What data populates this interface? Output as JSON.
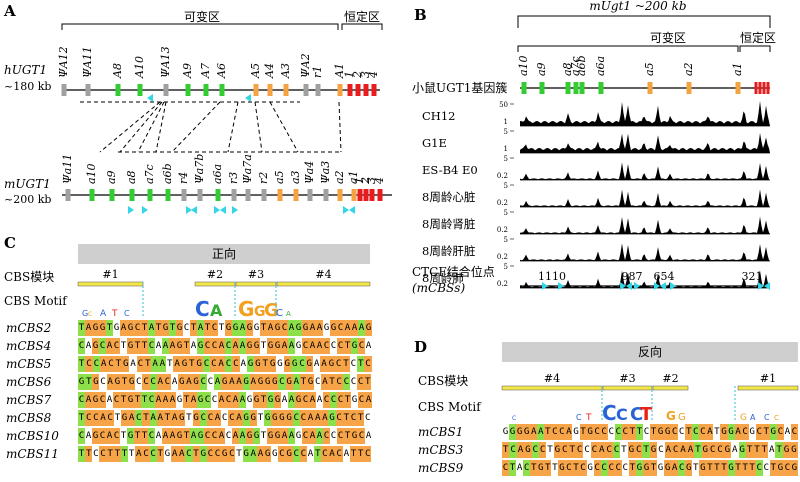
{
  "panel_a": {
    "letter": "A",
    "variable_region": "可变区",
    "constant_region": "恒定区",
    "human_label": "hUGT1",
    "human_size": "~180 kb",
    "human_exons": [
      "ΨA12",
      "ΨA11",
      "A8",
      "A10",
      "ΨA13",
      "A9",
      "A7",
      "A6",
      "A5",
      "A4",
      "A3",
      "ΨA2",
      "r1",
      "A1",
      "1",
      "2",
      "3",
      "4"
    ],
    "mouse_label": "mUGT1",
    "mouse_size": "~200 kb",
    "mouse_exons": [
      "Ψa11",
      "a10",
      "a9",
      "a8",
      "a7c",
      "a6b",
      "r4",
      "Ψa7b",
      "a6a",
      "r3",
      "Ψa7a",
      "r2",
      "a5",
      "a3",
      "Ψa4",
      "Ψa3",
      "a2",
      "a1",
      "1",
      "2",
      "3",
      "4"
    ]
  },
  "panel_b": {
    "letter": "B",
    "title": "mUgt1 ~200 kb",
    "variable_region": "可变区",
    "constant_region": "恒定区",
    "cluster_label": "小鼠UGT1基因簇",
    "cluster_italic": "UGT1",
    "exons": [
      "a10",
      "a9",
      "a8",
      "a7c",
      "a6b",
      "a6a",
      "a5",
      "a2",
      "a1"
    ],
    "tracks": [
      {
        "name": "CH12",
        "top": "50",
        "bottom": "1"
      },
      {
        "name": "G1E",
        "top": "5",
        "bottom": "1"
      },
      {
        "name": "ES-B4 E0",
        "top": "5",
        "bottom": "0.2"
      },
      {
        "name": "8周龄心脏",
        "top": "5",
        "bottom": "0.2"
      },
      {
        "name": "8周龄肾脏",
        "top": "5",
        "bottom": "0.2"
      },
      {
        "name": "8周龄肝脏",
        "top": "5",
        "bottom": "0.2"
      },
      {
        "name": "8周龄肺",
        "top": "5",
        "bottom": "0.2"
      }
    ],
    "ctcf_label": "CTCF结合位点",
    "ctcf_sub": "(mCBSs)",
    "ctcf_numbers": [
      "1110",
      "987",
      "654",
      "321"
    ]
  },
  "panel_c": {
    "letter": "C",
    "orientation": "正向",
    "module_label": "CBS模块",
    "motif_label": "CBS Motif",
    "modules": [
      "#1",
      "#2",
      "#3",
      "#4"
    ],
    "rows": [
      {
        "name": "mCBS2",
        "seq": "TAGGTGAGCTATGTGCTATCTGGAGGTAGCAGGAAGGCAAAG"
      },
      {
        "name": "mCBS4",
        "seq": "CAGCACTGTTCAAAGTAGCCACAAGGTGGAAGCAACCCTGCA"
      },
      {
        "name": "mCBS5",
        "seq": "TCCACTGACTAATAGTGCCACCAGGTGGGGCGAAGCTCTC"
      },
      {
        "name": "mCBS6",
        "seq": "GTGCAGTGCCCACAGAGCCAGAAGAGGGCGATGCATCCCCT"
      },
      {
        "name": "mCBS7",
        "seq": "CAGCACTGTTCAAAGTAGCCACAAGGTGGAAGCAACCCTGCA"
      },
      {
        "name": "mCBS8",
        "seq": "TCCACTGACTAATAGTGCCACCAGGTGGGGCCAAAGCTCTC"
      },
      {
        "name": "mCBS10",
        "seq": "CAGCACTGTTCAAAGTAGCCACAAGGTGGAAGCAACCCTGCA"
      },
      {
        "name": "mCBS11",
        "seq": "TTCCTTTTACCTGAACTGCCGCTGAAGGCGCCATCACATTC"
      }
    ]
  },
  "panel_d": {
    "letter": "D",
    "orientation": "反向",
    "module_label": "CBS模块",
    "motif_label": "CBS Motif",
    "modules": [
      "#4",
      "#3",
      "#2",
      "#1"
    ],
    "rows": [
      {
        "name": "mCBS1",
        "seq": "GGGGAATCCAGTGCCCCCTTCTGGCCTCCATGGACGCTGCAC"
      },
      {
        "name": "mCBS3",
        "seq": "TCAGCCTGCTCCCACCTGCTGCACAATGCCGAGTTTATGG"
      },
      {
        "name": "mCBS9",
        "seq": "CTACTGTTGCTCGCCCCCTGGTGGACGTGTTTGTTTCCTGCG"
      }
    ]
  },
  "colors": {
    "green": "#33cc33",
    "orange": "#f5a243",
    "gray": "#a0a0a0",
    "red": "#e81c1c",
    "cyan": "#33d6e6",
    "highlight_orange": "#f6a447",
    "highlight_green": "#8ee04a"
  }
}
